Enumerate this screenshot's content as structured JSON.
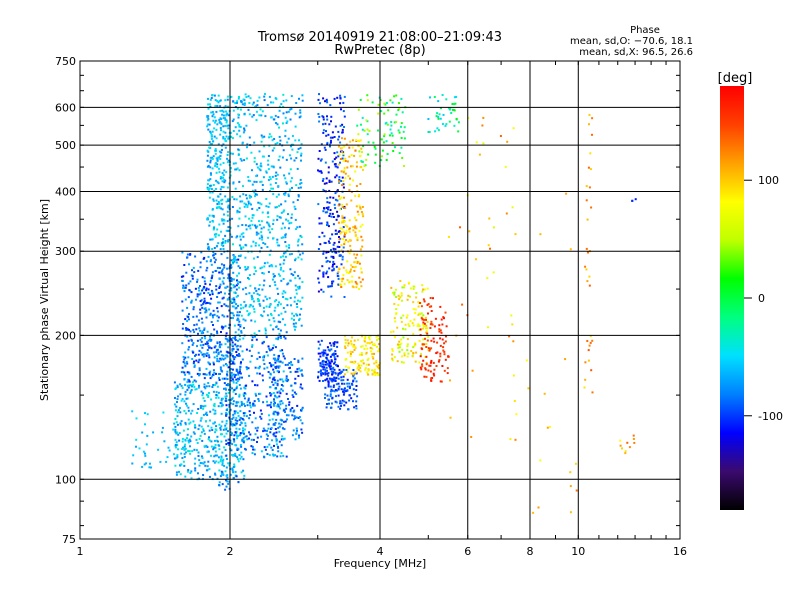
{
  "chart_data": {
    "type": "scatter",
    "title": "Tromsø 20140919 21:08:00–21:09:43",
    "subtitle": "RwPretec (8p)",
    "xlabel": "Frequency [MHz]",
    "ylabel": "Stationary phase Virtual Height [km]",
    "x_scale": "log",
    "y_scale": "log",
    "xlim": [
      1,
      16
    ],
    "ylim": [
      75,
      750
    ],
    "x_ticks": [
      1,
      2,
      4,
      6,
      8,
      10,
      16
    ],
    "y_ticks": [
      75,
      100,
      200,
      300,
      400,
      500,
      600,
      750
    ],
    "x_gridlines": [
      2,
      4,
      6,
      8,
      10
    ],
    "y_gridlines": [
      100,
      200,
      300,
      400,
      500,
      600
    ],
    "grid": true,
    "phase_stats": {
      "heading": "Phase",
      "line_o": "mean, sd,O: −70.6, 18.1",
      "line_x": "mean, sd,X:  96.5, 26.6"
    },
    "colorbar": {
      "unit": "[deg]",
      "range": [
        -180,
        180
      ],
      "ticks": [
        100,
        0,
        -100
      ],
      "colors": [
        "#000000",
        "#3a0a6e",
        "#0000ff",
        "#0080ff",
        "#00e0ff",
        "#00ff80",
        "#00ff00",
        "#c0ff00",
        "#ffff00",
        "#ffa000",
        "#ff4000",
        "#ff0000"
      ]
    },
    "regions": [
      {
        "f": [
          1.55,
          2.15
        ],
        "h": [
          100,
          160
        ],
        "phase": [
          -85,
          -35
        ],
        "n": 450
      },
      {
        "f": [
          1.6,
          2.1
        ],
        "h": [
          160,
          300
        ],
        "phase": [
          -110,
          -60
        ],
        "n": 500
      },
      {
        "f": [
          1.8,
          2.0
        ],
        "h": [
          300,
          640
        ],
        "phase": [
          -80,
          -40
        ],
        "n": 300
      },
      {
        "f": [
          1.95,
          2.6
        ],
        "h": [
          110,
          200
        ],
        "phase": [
          -110,
          -50
        ],
        "n": 350
      },
      {
        "f": [
          2.0,
          2.8
        ],
        "h": [
          200,
          640
        ],
        "phase": [
          -85,
          -35
        ],
        "n": 700
      },
      {
        "f": [
          2.4,
          2.8
        ],
        "h": [
          120,
          180
        ],
        "phase": [
          -110,
          -60
        ],
        "n": 150
      },
      {
        "f": [
          1.25,
          1.6
        ],
        "h": [
          105,
          140
        ],
        "phase": [
          -70,
          -40
        ],
        "n": 40
      },
      {
        "f": [
          1.9,
          2.1
        ],
        "h": [
          95,
          105
        ],
        "phase": [
          -100,
          -60
        ],
        "n": 20
      },
      {
        "f": [
          3.0,
          3.3
        ],
        "h": [
          160,
          195
        ],
        "phase": [
          -120,
          -80
        ],
        "n": 120
      },
      {
        "f": [
          3.0,
          3.4
        ],
        "h": [
          240,
          640
        ],
        "phase": [
          -130,
          -80
        ],
        "n": 250
      },
      {
        "f": [
          3.1,
          3.6
        ],
        "h": [
          140,
          170
        ],
        "phase": [
          -110,
          -80
        ],
        "n": 120
      },
      {
        "f": [
          3.3,
          3.7
        ],
        "h": [
          250,
          520
        ],
        "phase": [
          70,
          130
        ],
        "n": 200
      },
      {
        "f": [
          3.4,
          4.0
        ],
        "h": [
          165,
          200
        ],
        "phase": [
          60,
          115
        ],
        "n": 130
      },
      {
        "f": [
          3.6,
          4.5
        ],
        "h": [
          450,
          640
        ],
        "phase": [
          -40,
          60
        ],
        "n": 90
      },
      {
        "f": [
          4.2,
          5.0
        ],
        "h": [
          175,
          260
        ],
        "phase": [
          40,
          110
        ],
        "n": 140
      },
      {
        "f": [
          4.8,
          5.5
        ],
        "h": [
          160,
          240
        ],
        "phase": [
          140,
          175
        ],
        "n": 110
      },
      {
        "f": [
          5.0,
          5.8
        ],
        "h": [
          530,
          640
        ],
        "phase": [
          -60,
          20
        ],
        "n": 40
      },
      {
        "f": [
          5.5,
          7.5
        ],
        "h": [
          120,
          600
        ],
        "phase": [
          60,
          140
        ],
        "n": 40
      },
      {
        "f": [
          7.5,
          10.5
        ],
        "h": [
          80,
          400
        ],
        "phase": [
          80,
          140
        ],
        "n": 20
      },
      {
        "f": [
          10.3,
          10.7
        ],
        "h": [
          120,
          600
        ],
        "phase": [
          90,
          140
        ],
        "n": 30
      },
      {
        "f": [
          12.0,
          13.0
        ],
        "h": [
          110,
          125
        ],
        "phase": [
          80,
          140
        ],
        "n": 10
      },
      {
        "f": [
          12.8,
          13.2
        ],
        "h": [
          380,
          390
        ],
        "phase": [
          -110,
          -100
        ],
        "n": 3
      }
    ]
  }
}
